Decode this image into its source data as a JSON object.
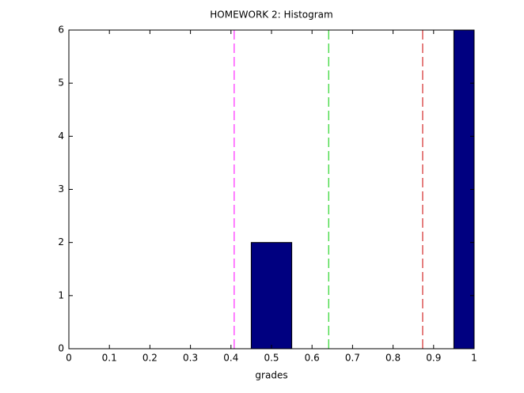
{
  "chart_data": {
    "type": "histogram",
    "title": "HOMEWORK 2: Histogram",
    "x_label": "grades",
    "bins": [
      -0.05,
      0.05,
      0.15,
      0.25,
      0.35,
      0.45,
      0.55,
      0.65,
      0.75,
      0.85,
      0.95,
      1.05
    ],
    "values": [
      0,
      0,
      0,
      0,
      0,
      2,
      0,
      0,
      0,
      0,
      6
    ],
    "color": "#000080",
    "xlim": [
      0,
      1
    ],
    "xticks": [
      0,
      0.1,
      0.2,
      0.3,
      0.4,
      0.5,
      0.6,
      0.7,
      0.8,
      0.9,
      1
    ],
    "ylim": [
      0,
      6
    ],
    "yticks": [
      0,
      1,
      2,
      3,
      4,
      5,
      6
    ],
    "vlines": [
      {
        "value": 0.408,
        "color": "#ff00ff"
      },
      {
        "value": 0.641,
        "color": "#00cc00"
      },
      {
        "value": 0.873,
        "color": "#cc0000"
      }
    ]
  }
}
